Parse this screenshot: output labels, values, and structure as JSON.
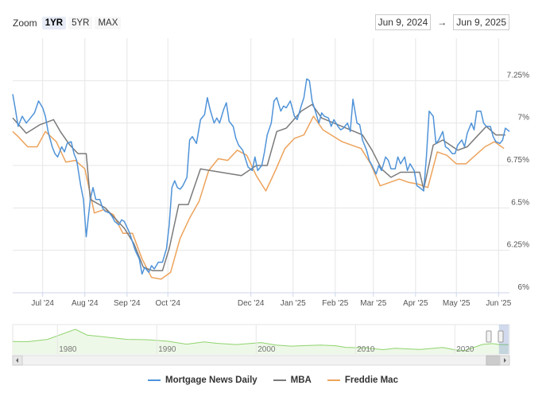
{
  "zoom": {
    "label": "Zoom",
    "buttons": [
      {
        "label": "1YR",
        "active": true
      },
      {
        "label": "5YR",
        "active": false
      },
      {
        "label": "MAX",
        "active": false
      }
    ]
  },
  "range": {
    "from": "Jun 9, 2024",
    "arrow": "→",
    "to": "Jun 9, 2025"
  },
  "colors": {
    "mnd": "#4f93d8",
    "mba": "#7a7a7a",
    "freddie": "#eda35c",
    "grid": "#e6e6e6",
    "navigator": "#8fd46e"
  },
  "chart_data": {
    "type": "line",
    "x_start": "2024-06-09",
    "x_end": "2025-06-09",
    "ylim": [
      6.0,
      7.5
    ],
    "y_ticks": [
      "7.25%",
      "7%",
      "6.75%",
      "6.5%",
      "6.25%",
      "6%"
    ],
    "x_ticks": [
      {
        "label": "Jul '24",
        "date": "2024-07-01"
      },
      {
        "label": "Aug '24",
        "date": "2024-08-01"
      },
      {
        "label": "Sep '24",
        "date": "2024-09-01"
      },
      {
        "label": "Oct '24",
        "date": "2024-10-01"
      },
      {
        "label": "Dec '24",
        "date": "2024-12-01"
      },
      {
        "label": "Jan '25",
        "date": "2025-01-01"
      },
      {
        "label": "Feb '25",
        "date": "2025-02-01"
      },
      {
        "label": "Mar '25",
        "date": "2025-03-01"
      },
      {
        "label": "Apr '25",
        "date": "2025-04-01"
      },
      {
        "label": "May '25",
        "date": "2025-05-01"
      },
      {
        "label": "Jun '25",
        "date": "2025-06-01"
      }
    ],
    "series": [
      {
        "name": "Mortgage News Daily",
        "points": [
          [
            "2024-06-09",
            7.17
          ],
          [
            "2024-06-11",
            7.08
          ],
          [
            "2024-06-13",
            6.98
          ],
          [
            "2024-06-16",
            7.04
          ],
          [
            "2024-06-19",
            7.0
          ],
          [
            "2024-06-22",
            7.03
          ],
          [
            "2024-06-25",
            7.06
          ],
          [
            "2024-06-28",
            7.13
          ],
          [
            "2024-07-01",
            7.09
          ],
          [
            "2024-07-03",
            7.04
          ],
          [
            "2024-07-05",
            6.95
          ],
          [
            "2024-07-08",
            6.86
          ],
          [
            "2024-07-10",
            6.82
          ],
          [
            "2024-07-12",
            6.8
          ],
          [
            "2024-07-15",
            6.86
          ],
          [
            "2024-07-17",
            6.83
          ],
          [
            "2024-07-19",
            6.88
          ],
          [
            "2024-07-22",
            6.89
          ],
          [
            "2024-07-24",
            6.82
          ],
          [
            "2024-07-26",
            6.78
          ],
          [
            "2024-07-29",
            6.63
          ],
          [
            "2024-07-31",
            6.55
          ],
          [
            "2024-08-02",
            6.33
          ],
          [
            "2024-08-05",
            6.55
          ],
          [
            "2024-08-07",
            6.62
          ],
          [
            "2024-08-09",
            6.55
          ],
          [
            "2024-08-12",
            6.55
          ],
          [
            "2024-08-14",
            6.5
          ],
          [
            "2024-08-16",
            6.48
          ],
          [
            "2024-08-19",
            6.47
          ],
          [
            "2024-08-21",
            6.45
          ],
          [
            "2024-08-23",
            6.42
          ],
          [
            "2024-08-26",
            6.4
          ],
          [
            "2024-08-28",
            6.43
          ],
          [
            "2024-08-30",
            6.42
          ],
          [
            "2024-09-03",
            6.35
          ],
          [
            "2024-09-05",
            6.3
          ],
          [
            "2024-09-07",
            6.25
          ],
          [
            "2024-09-10",
            6.2
          ],
          [
            "2024-09-12",
            6.11
          ],
          [
            "2024-09-14",
            6.15
          ],
          [
            "2024-09-17",
            6.12
          ],
          [
            "2024-09-19",
            6.16
          ],
          [
            "2024-09-21",
            6.14
          ],
          [
            "2024-09-24",
            6.18
          ],
          [
            "2024-09-27",
            6.18
          ],
          [
            "2024-09-30",
            6.26
          ],
          [
            "2024-10-02",
            6.4
          ],
          [
            "2024-10-04",
            6.62
          ],
          [
            "2024-10-06",
            6.66
          ],
          [
            "2024-10-08",
            6.62
          ],
          [
            "2024-10-10",
            6.61
          ],
          [
            "2024-10-12",
            6.63
          ],
          [
            "2024-10-15",
            6.68
          ],
          [
            "2024-10-17",
            6.9
          ],
          [
            "2024-10-19",
            6.92
          ],
          [
            "2024-10-22",
            6.88
          ],
          [
            "2024-10-25",
            7.02
          ],
          [
            "2024-10-28",
            7.05
          ],
          [
            "2024-10-30",
            7.15
          ],
          [
            "2024-11-01",
            7.08
          ],
          [
            "2024-11-04",
            7.0
          ],
          [
            "2024-11-06",
            7.03
          ],
          [
            "2024-11-08",
            7.0
          ],
          [
            "2024-11-11",
            7.08
          ],
          [
            "2024-11-13",
            7.12
          ],
          [
            "2024-11-15",
            7.01
          ],
          [
            "2024-11-18",
            6.98
          ],
          [
            "2024-11-20",
            6.91
          ],
          [
            "2024-11-22",
            6.87
          ],
          [
            "2024-11-25",
            6.84
          ],
          [
            "2024-11-27",
            6.79
          ],
          [
            "2024-11-29",
            6.74
          ],
          [
            "2024-12-02",
            6.72
          ],
          [
            "2024-12-04",
            6.8
          ],
          [
            "2024-12-06",
            6.72
          ],
          [
            "2024-12-09",
            6.75
          ],
          [
            "2024-12-11",
            6.83
          ],
          [
            "2024-12-13",
            6.93
          ],
          [
            "2024-12-16",
            7.0
          ],
          [
            "2024-12-18",
            7.13
          ],
          [
            "2024-12-20",
            7.15
          ],
          [
            "2024-12-23",
            7.07
          ],
          [
            "2024-12-25",
            7.1
          ],
          [
            "2024-12-27",
            7.09
          ],
          [
            "2024-12-30",
            7.13
          ],
          [
            "2025-01-02",
            7.04
          ],
          [
            "2025-01-04",
            7.02
          ],
          [
            "2025-01-07",
            7.1
          ],
          [
            "2025-01-09",
            7.15
          ],
          [
            "2025-01-11",
            7.26
          ],
          [
            "2025-01-13",
            7.25
          ],
          [
            "2025-01-15",
            7.13
          ],
          [
            "2025-01-17",
            7.08
          ],
          [
            "2025-01-20",
            7.0
          ],
          [
            "2025-01-22",
            7.06
          ],
          [
            "2025-01-24",
            7.04
          ],
          [
            "2025-01-27",
            7.03
          ],
          [
            "2025-01-29",
            6.98
          ],
          [
            "2025-01-31",
            7.02
          ],
          [
            "2025-02-03",
            6.98
          ],
          [
            "2025-02-05",
            6.96
          ],
          [
            "2025-02-07",
            6.97
          ],
          [
            "2025-02-10",
            7.0
          ],
          [
            "2025-02-12",
            6.95
          ],
          [
            "2025-02-14",
            7.14
          ],
          [
            "2025-02-17",
            7.0
          ],
          [
            "2025-02-19",
            6.99
          ],
          [
            "2025-02-21",
            6.9
          ],
          [
            "2025-02-24",
            6.84
          ],
          [
            "2025-02-26",
            6.78
          ],
          [
            "2025-02-28",
            6.75
          ],
          [
            "2025-03-03",
            6.7
          ],
          [
            "2025-03-05",
            6.75
          ],
          [
            "2025-03-07",
            6.72
          ],
          [
            "2025-03-10",
            6.8
          ],
          [
            "2025-03-12",
            6.78
          ],
          [
            "2025-03-14",
            6.73
          ],
          [
            "2025-03-17",
            6.73
          ],
          [
            "2025-03-19",
            6.8
          ],
          [
            "2025-03-21",
            6.76
          ],
          [
            "2025-03-24",
            6.8
          ],
          [
            "2025-03-26",
            6.72
          ],
          [
            "2025-03-28",
            6.76
          ],
          [
            "2025-03-31",
            6.72
          ],
          [
            "2025-04-02",
            6.63
          ],
          [
            "2025-04-04",
            6.62
          ],
          [
            "2025-04-07",
            6.6
          ],
          [
            "2025-04-09",
            6.8
          ],
          [
            "2025-04-11",
            7.07
          ],
          [
            "2025-04-14",
            7.04
          ],
          [
            "2025-04-16",
            6.88
          ],
          [
            "2025-04-18",
            6.9
          ],
          [
            "2025-04-21",
            6.95
          ],
          [
            "2025-04-23",
            6.86
          ],
          [
            "2025-04-25",
            6.85
          ],
          [
            "2025-04-28",
            6.82
          ],
          [
            "2025-04-30",
            6.82
          ],
          [
            "2025-05-02",
            6.87
          ],
          [
            "2025-05-05",
            6.9
          ],
          [
            "2025-05-07",
            6.86
          ],
          [
            "2025-05-09",
            6.94
          ],
          [
            "2025-05-12",
            7.0
          ],
          [
            "2025-05-14",
            6.96
          ],
          [
            "2025-05-16",
            7.07
          ],
          [
            "2025-05-19",
            7.07
          ],
          [
            "2025-05-21",
            7.0
          ],
          [
            "2025-05-23",
            6.98
          ],
          [
            "2025-05-26",
            6.98
          ],
          [
            "2025-05-28",
            6.92
          ],
          [
            "2025-05-30",
            6.89
          ],
          [
            "2025-06-02",
            6.88
          ],
          [
            "2025-06-04",
            6.9
          ],
          [
            "2025-06-06",
            6.97
          ],
          [
            "2025-06-09",
            6.95
          ]
        ]
      },
      {
        "name": "MBA",
        "points": [
          [
            "2024-06-09",
            7.03
          ],
          [
            "2024-06-19",
            6.94
          ],
          [
            "2024-06-29",
            6.99
          ],
          [
            "2024-07-09",
            7.02
          ],
          [
            "2024-07-14",
            6.95
          ],
          [
            "2024-07-21",
            6.87
          ],
          [
            "2024-07-27",
            6.82
          ],
          [
            "2024-08-02",
            6.82
          ],
          [
            "2024-08-05",
            6.55
          ],
          [
            "2024-08-16",
            6.5
          ],
          [
            "2024-08-23",
            6.44
          ],
          [
            "2024-08-30",
            6.38
          ],
          [
            "2024-09-06",
            6.29
          ],
          [
            "2024-09-13",
            6.15
          ],
          [
            "2024-09-20",
            6.13
          ],
          [
            "2024-09-27",
            6.13
          ],
          [
            "2024-10-02",
            6.26
          ],
          [
            "2024-10-09",
            6.52
          ],
          [
            "2024-10-16",
            6.52
          ],
          [
            "2024-10-25",
            6.73
          ],
          [
            "2024-11-24",
            6.69
          ],
          [
            "2024-12-05",
            6.75
          ],
          [
            "2024-12-13",
            6.75
          ],
          [
            "2024-12-20",
            6.95
          ],
          [
            "2024-12-27",
            6.97
          ],
          [
            "2025-01-07",
            7.07
          ],
          [
            "2025-01-15",
            7.11
          ],
          [
            "2025-01-22",
            7.03
          ],
          [
            "2025-02-21",
            6.93
          ],
          [
            "2025-02-28",
            6.84
          ],
          [
            "2025-03-07",
            6.73
          ],
          [
            "2025-03-14",
            6.68
          ],
          [
            "2025-03-21",
            6.71
          ],
          [
            "2025-03-28",
            6.71
          ],
          [
            "2025-04-04",
            6.71
          ],
          [
            "2025-04-07",
            6.61
          ],
          [
            "2025-04-14",
            6.87
          ],
          [
            "2025-04-21",
            6.9
          ],
          [
            "2025-05-02",
            6.84
          ],
          [
            "2025-05-09",
            6.86
          ],
          [
            "2025-05-16",
            6.92
          ],
          [
            "2025-05-23",
            6.98
          ],
          [
            "2025-05-30",
            6.93
          ],
          [
            "2025-06-06",
            6.93
          ]
        ]
      },
      {
        "name": "Freddie Mac",
        "points": [
          [
            "2024-06-09",
            6.95
          ],
          [
            "2024-06-13",
            6.92
          ],
          [
            "2024-06-20",
            6.86
          ],
          [
            "2024-06-27",
            6.86
          ],
          [
            "2024-07-03",
            6.95
          ],
          [
            "2024-07-11",
            6.89
          ],
          [
            "2024-07-18",
            6.77
          ],
          [
            "2024-07-25",
            6.78
          ],
          [
            "2024-08-01",
            6.73
          ],
          [
            "2024-08-08",
            6.47
          ],
          [
            "2024-08-15",
            6.49
          ],
          [
            "2024-08-22",
            6.46
          ],
          [
            "2024-08-29",
            6.35
          ],
          [
            "2024-09-05",
            6.35
          ],
          [
            "2024-09-12",
            6.2
          ],
          [
            "2024-09-19",
            6.09
          ],
          [
            "2024-09-26",
            6.08
          ],
          [
            "2024-10-03",
            6.12
          ],
          [
            "2024-10-10",
            6.32
          ],
          [
            "2024-10-17",
            6.44
          ],
          [
            "2024-10-24",
            6.54
          ],
          [
            "2024-10-31",
            6.72
          ],
          [
            "2024-11-07",
            6.79
          ],
          [
            "2024-11-14",
            6.78
          ],
          [
            "2024-11-21",
            6.84
          ],
          [
            "2024-11-28",
            6.81
          ],
          [
            "2024-12-05",
            6.69
          ],
          [
            "2024-12-12",
            6.6
          ],
          [
            "2024-12-19",
            6.72
          ],
          [
            "2024-12-26",
            6.85
          ],
          [
            "2025-01-02",
            6.91
          ],
          [
            "2025-01-09",
            6.93
          ],
          [
            "2025-01-16",
            7.04
          ],
          [
            "2025-01-23",
            6.96
          ],
          [
            "2025-02-06",
            6.89
          ],
          [
            "2025-02-13",
            6.87
          ],
          [
            "2025-02-20",
            6.85
          ],
          [
            "2025-02-27",
            6.76
          ],
          [
            "2025-03-06",
            6.63
          ],
          [
            "2025-03-13",
            6.65
          ],
          [
            "2025-03-20",
            6.67
          ],
          [
            "2025-03-27",
            6.65
          ],
          [
            "2025-04-03",
            6.64
          ],
          [
            "2025-04-10",
            6.62
          ],
          [
            "2025-04-17",
            6.83
          ],
          [
            "2025-04-24",
            6.81
          ],
          [
            "2025-05-01",
            6.76
          ],
          [
            "2025-05-08",
            6.76
          ],
          [
            "2025-05-15",
            6.81
          ],
          [
            "2025-05-22",
            6.86
          ],
          [
            "2025-05-29",
            6.89
          ],
          [
            "2025-06-05",
            6.85
          ]
        ]
      }
    ],
    "navigator": {
      "x_ticks": [
        "1980",
        "1990",
        "2000",
        "2010",
        "2020"
      ]
    }
  }
}
